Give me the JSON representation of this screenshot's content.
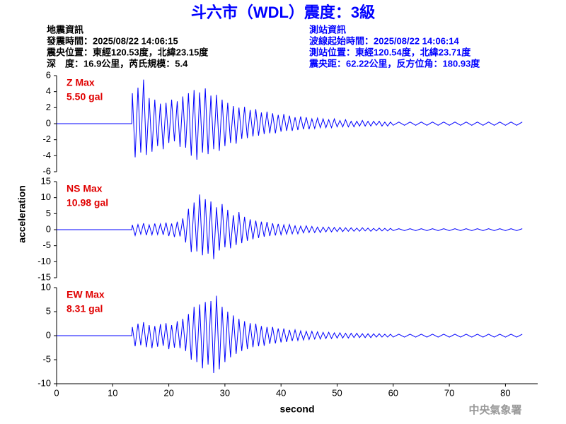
{
  "header": {
    "title": "斗六市（WDL）震度：3級",
    "left": [
      "地震資訊",
      "發震時間：2025/08/22 14:06:15",
      "震央位置：東經120.53度，北緯23.15度",
      "深　度：16.9公里，芮氏規模：5.4"
    ],
    "right": [
      "測站資訊",
      "波線起始時間：2025/08/22 14:06:14",
      "測站位置：東經120.54度，北緯23.71度",
      "震央距：62.22公里，反方位角：180.93度"
    ]
  },
  "footer": "中央氣象署",
  "chart_data": {
    "type": "line",
    "xlabel": "second",
    "ylabel": "acceleration",
    "xlim": [
      0,
      85.75
    ],
    "xticks": [
      0,
      10,
      20,
      30,
      40,
      50,
      60,
      70,
      80
    ],
    "x": [
      0,
      13.4,
      13.5,
      14,
      14.5,
      15,
      15.5,
      16,
      16.5,
      17,
      17.5,
      18,
      18.5,
      19,
      19.5,
      20,
      20.5,
      21,
      21.5,
      22,
      22.5,
      23,
      23.5,
      24,
      24.5,
      25,
      25.5,
      26,
      26.5,
      27,
      27.5,
      28,
      28.5,
      29,
      29.5,
      30,
      30.5,
      31,
      31.5,
      32,
      32.5,
      33,
      33.5,
      34,
      34.5,
      35,
      35.5,
      36,
      36.5,
      37,
      37.5,
      38,
      38.5,
      39,
      39.5,
      40,
      40.5,
      41,
      41.5,
      42,
      42.5,
      43,
      43.5,
      44,
      44.5,
      45,
      45.5,
      46,
      46.5,
      47,
      47.5,
      48,
      48.5,
      49,
      49.5,
      50,
      50.5,
      51,
      51.5,
      52,
      52.5,
      53,
      53.5,
      54,
      54.5,
      55,
      55.5,
      56,
      56.5,
      57,
      57.5,
      58,
      58.5,
      59,
      59.5,
      60,
      61,
      62,
      63,
      64,
      65,
      66,
      67,
      68,
      69,
      70,
      71,
      72,
      73,
      74,
      75,
      76,
      77,
      78,
      79,
      80,
      81,
      82,
      83,
      84,
      85
    ],
    "panels": [
      {
        "annotation": [
          "Z Max",
          "5.50 gal"
        ],
        "color": "#0000ff",
        "ylim": [
          -6,
          6
        ],
        "yticks": [
          6,
          4,
          2,
          0,
          -2,
          -4,
          -6
        ],
        "values": [
          0,
          0,
          3.8,
          -4.2,
          4.5,
          -3.6,
          5.5,
          -3.9,
          3.2,
          -3.5,
          3.0,
          -2.8,
          2.5,
          -3.2,
          2.6,
          -2.4,
          3.0,
          -2.2,
          2.8,
          -2.9,
          3.4,
          -3.0,
          3.8,
          -4.0,
          4.2,
          -4.5,
          3.9,
          -3.6,
          4.4,
          -3.8,
          3.5,
          -3.2,
          3.6,
          -3.4,
          3.0,
          -2.8,
          2.6,
          -2.4,
          2.2,
          -2.5,
          2.0,
          -1.9,
          2.1,
          -1.8,
          1.7,
          -1.6,
          1.8,
          -1.5,
          1.4,
          -1.3,
          1.5,
          -1.2,
          1.3,
          -1.2,
          1.1,
          -1.0,
          1.2,
          -0.9,
          1.0,
          -0.9,
          0.8,
          -0.8,
          0.9,
          -0.7,
          0.8,
          -0.7,
          0.6,
          -0.6,
          0.7,
          -0.5,
          0.6,
          -0.5,
          0.5,
          -0.5,
          0.6,
          -0.4,
          0.4,
          -0.4,
          0.5,
          -0.4,
          0.3,
          -0.4,
          0.3,
          -0.3,
          0.4,
          -0.3,
          0.3,
          -0.3,
          0.3,
          -0.2,
          0.3,
          -0.3,
          0.2,
          -0.3,
          0.2,
          -0.2,
          0.2,
          -0.2,
          0.2,
          -0.2,
          0.2,
          -0.2,
          0.2,
          -0.2,
          0.2,
          -0.2,
          0.2,
          -0.2,
          0.2,
          -0.2,
          0.2,
          -0.2,
          0.2,
          -0.2,
          0.2,
          -0.2,
          0.2,
          -0.2,
          0.2
        ]
      },
      {
        "annotation": [
          "NS Max",
          "10.98 gal"
        ],
        "color": "#0000ff",
        "ylim": [
          -15,
          15
        ],
        "yticks": [
          15,
          10,
          5,
          0,
          -5,
          -10,
          -15
        ],
        "values": [
          0,
          0,
          1.5,
          -1.8,
          1.6,
          -1.4,
          2.0,
          -1.7,
          1.5,
          -1.6,
          1.9,
          -1.5,
          1.8,
          -1.6,
          2.2,
          -2.0,
          1.9,
          -2.3,
          2.5,
          -2.1,
          3.5,
          -4.0,
          6.5,
          -7.0,
          8.5,
          -6.8,
          10.98,
          -8.0,
          9.5,
          -7.5,
          8.8,
          -9.2,
          7.0,
          -6.5,
          8.0,
          -5.5,
          6.2,
          -5.8,
          4.5,
          -4.8,
          5.5,
          -4.2,
          4.0,
          -3.5,
          3.2,
          -3.0,
          2.8,
          -2.6,
          2.5,
          -2.2,
          2.4,
          -2.0,
          2.0,
          -1.8,
          1.8,
          -1.6,
          1.5,
          -1.4,
          1.6,
          -1.3,
          1.2,
          -1.3,
          1.1,
          -1.0,
          1.2,
          -0.9,
          1.0,
          -0.9,
          0.8,
          -0.9,
          0.8,
          -0.7,
          0.8,
          -0.7,
          0.7,
          -0.6,
          0.7,
          -0.6,
          0.6,
          -0.5,
          0.6,
          -0.5,
          0.5,
          -0.5,
          0.6,
          -0.4,
          0.5,
          -0.5,
          0.4,
          -0.4,
          0.5,
          -0.4,
          0.4,
          -0.4,
          0.4,
          -0.3,
          0.3,
          -0.3,
          0.3,
          -0.3,
          0.3,
          -0.3,
          0.3,
          -0.3,
          0.3,
          -0.3,
          0.3,
          -0.3,
          0.3,
          -0.3,
          0.3,
          -0.3,
          0.3,
          -0.3,
          0.3,
          -0.3,
          0.3,
          -0.3,
          0.3
        ]
      },
      {
        "annotation": [
          "EW Max",
          "8.31 gal"
        ],
        "color": "#0000ff",
        "ylim": [
          -10,
          10
        ],
        "yticks": [
          10,
          5,
          0,
          -5,
          -10
        ],
        "values": [
          0,
          0,
          1.8,
          -2.2,
          2.5,
          -2.0,
          2.8,
          -2.4,
          2.2,
          -2.6,
          2.0,
          -2.3,
          2.4,
          -2.1,
          2.6,
          -2.8,
          2.2,
          -2.5,
          3.0,
          -2.6,
          3.5,
          -3.2,
          4.5,
          -5.0,
          6.0,
          -5.5,
          6.5,
          -6.8,
          7.0,
          -6.0,
          7.2,
          -7.8,
          8.31,
          -7.0,
          6.0,
          -5.5,
          5.0,
          -4.5,
          4.2,
          -3.8,
          3.5,
          -3.2,
          3.0,
          -2.8,
          2.6,
          -2.4,
          2.5,
          -2.2,
          2.0,
          -2.1,
          1.8,
          -1.7,
          1.8,
          -1.6,
          1.5,
          -1.4,
          1.5,
          -1.3,
          1.2,
          -1.1,
          1.2,
          -1.0,
          1.0,
          -0.9,
          0.9,
          -0.8,
          0.9,
          -0.7,
          0.8,
          -0.7,
          0.7,
          -0.6,
          0.7,
          -0.6,
          0.6,
          -0.5,
          0.6,
          -0.5,
          0.5,
          -0.5,
          0.5,
          -0.4,
          0.5,
          -0.4,
          0.4,
          -0.4,
          0.4,
          -0.4,
          0.4,
          -0.3,
          0.4,
          -0.3,
          0.3,
          -0.3,
          0.3,
          -0.3,
          0.3,
          -0.3,
          0.3,
          -0.3,
          0.3,
          -0.3,
          0.3,
          -0.3,
          0.3,
          -0.3,
          0.3,
          -0.3,
          0.3,
          -0.3,
          0.3,
          -0.3,
          0.3,
          -0.3,
          0.3,
          -0.3,
          0.3,
          -0.3,
          0.3
        ]
      }
    ]
  }
}
